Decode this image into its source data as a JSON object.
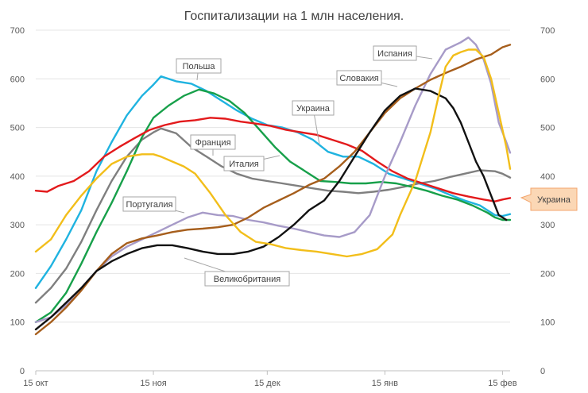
{
  "chart_data": {
    "type": "line",
    "title": "Госпитализации на 1 млн населения.",
    "ylim": [
      0,
      700
    ],
    "y_ticks": [
      0,
      100,
      200,
      300,
      400,
      500,
      600,
      700
    ],
    "x_range_days": [
      0,
      125
    ],
    "x_ticks": [
      {
        "day": 0,
        "label": "15 окт"
      },
      {
        "day": 31,
        "label": "15 ноя"
      },
      {
        "day": 61,
        "label": "15 дек"
      },
      {
        "day": 92,
        "label": "15 янв"
      },
      {
        "day": 123,
        "label": "15 фев"
      }
    ],
    "series": [
      {
        "name": "Польша",
        "color": "#1fb3e0",
        "points": [
          [
            0,
            170
          ],
          [
            4,
            215
          ],
          [
            8,
            270
          ],
          [
            12,
            330
          ],
          [
            16,
            410
          ],
          [
            20,
            470
          ],
          [
            24,
            525
          ],
          [
            28,
            565
          ],
          [
            31,
            588
          ],
          [
            33,
            605
          ],
          [
            37,
            595
          ],
          [
            41,
            590
          ],
          [
            45,
            575
          ],
          [
            49,
            555
          ],
          [
            53,
            535
          ],
          [
            57,
            518
          ],
          [
            61,
            505
          ],
          [
            65,
            500
          ],
          [
            69,
            490
          ],
          [
            73,
            475
          ],
          [
            77,
            450
          ],
          [
            81,
            440
          ],
          [
            85,
            440
          ],
          [
            89,
            425
          ],
          [
            93,
            405
          ],
          [
            97,
            395
          ],
          [
            101,
            385
          ],
          [
            105,
            375
          ],
          [
            109,
            362
          ],
          [
            113,
            350
          ],
          [
            117,
            340
          ],
          [
            121,
            320
          ],
          [
            123,
            318
          ],
          [
            125,
            322
          ]
        ]
      },
      {
        "name": "Италия",
        "color": "#7f7f7f",
        "points": [
          [
            0,
            140
          ],
          [
            4,
            170
          ],
          [
            8,
            210
          ],
          [
            12,
            265
          ],
          [
            16,
            330
          ],
          [
            20,
            390
          ],
          [
            24,
            440
          ],
          [
            28,
            475
          ],
          [
            31,
            490
          ],
          [
            33,
            498
          ],
          [
            37,
            488
          ],
          [
            41,
            460
          ],
          [
            45,
            440
          ],
          [
            49,
            420
          ],
          [
            53,
            405
          ],
          [
            57,
            395
          ],
          [
            61,
            390
          ],
          [
            65,
            385
          ],
          [
            69,
            380
          ],
          [
            73,
            375
          ],
          [
            77,
            370
          ],
          [
            81,
            368
          ],
          [
            85,
            365
          ],
          [
            89,
            368
          ],
          [
            93,
            372
          ],
          [
            97,
            378
          ],
          [
            101,
            385
          ],
          [
            105,
            390
          ],
          [
            109,
            398
          ],
          [
            113,
            405
          ],
          [
            117,
            412
          ],
          [
            121,
            410
          ],
          [
            123,
            405
          ],
          [
            125,
            397
          ]
        ]
      },
      {
        "name": "Франция",
        "color": "#17a04a",
        "points": [
          [
            0,
            100
          ],
          [
            4,
            120
          ],
          [
            8,
            160
          ],
          [
            12,
            220
          ],
          [
            16,
            285
          ],
          [
            20,
            345
          ],
          [
            24,
            410
          ],
          [
            28,
            480
          ],
          [
            31,
            520
          ],
          [
            35,
            545
          ],
          [
            39,
            565
          ],
          [
            43,
            578
          ],
          [
            47,
            570
          ],
          [
            51,
            555
          ],
          [
            55,
            530
          ],
          [
            59,
            495
          ],
          [
            63,
            460
          ],
          [
            67,
            430
          ],
          [
            71,
            410
          ],
          [
            75,
            390
          ],
          [
            79,
            388
          ],
          [
            83,
            385
          ],
          [
            87,
            385
          ],
          [
            91,
            388
          ],
          [
            95,
            385
          ],
          [
            99,
            378
          ],
          [
            103,
            370
          ],
          [
            107,
            360
          ],
          [
            111,
            352
          ],
          [
            115,
            340
          ],
          [
            119,
            325
          ],
          [
            121,
            315
          ],
          [
            123,
            310
          ],
          [
            125,
            310
          ]
        ]
      },
      {
        "name": "Украина",
        "color": "#e31a1c",
        "points": [
          [
            0,
            370
          ],
          [
            3,
            368
          ],
          [
            6,
            380
          ],
          [
            10,
            390
          ],
          [
            14,
            410
          ],
          [
            18,
            440
          ],
          [
            22,
            460
          ],
          [
            26,
            478
          ],
          [
            30,
            495
          ],
          [
            34,
            505
          ],
          [
            38,
            512
          ],
          [
            42,
            515
          ],
          [
            46,
            520
          ],
          [
            50,
            518
          ],
          [
            54,
            512
          ],
          [
            58,
            508
          ],
          [
            62,
            503
          ],
          [
            66,
            495
          ],
          [
            70,
            490
          ],
          [
            74,
            485
          ],
          [
            78,
            475
          ],
          [
            82,
            465
          ],
          [
            86,
            452
          ],
          [
            90,
            430
          ],
          [
            94,
            410
          ],
          [
            98,
            395
          ],
          [
            102,
            385
          ],
          [
            106,
            375
          ],
          [
            110,
            365
          ],
          [
            114,
            358
          ],
          [
            118,
            352
          ],
          [
            121,
            348
          ],
          [
            123,
            352
          ],
          [
            125,
            355
          ]
        ]
      },
      {
        "name": "Португалия",
        "color": "#a79bc8",
        "points": [
          [
            0,
            100
          ],
          [
            4,
            110
          ],
          [
            8,
            135
          ],
          [
            12,
            170
          ],
          [
            16,
            205
          ],
          [
            20,
            235
          ],
          [
            24,
            255
          ],
          [
            28,
            270
          ],
          [
            32,
            285
          ],
          [
            36,
            300
          ],
          [
            40,
            315
          ],
          [
            44,
            325
          ],
          [
            48,
            320
          ],
          [
            52,
            318
          ],
          [
            56,
            310
          ],
          [
            60,
            305
          ],
          [
            64,
            298
          ],
          [
            68,
            292
          ],
          [
            72,
            285
          ],
          [
            76,
            278
          ],
          [
            80,
            275
          ],
          [
            84,
            285
          ],
          [
            88,
            320
          ],
          [
            92,
            400
          ],
          [
            96,
            470
          ],
          [
            100,
            545
          ],
          [
            104,
            610
          ],
          [
            108,
            660
          ],
          [
            112,
            675
          ],
          [
            114,
            685
          ],
          [
            116,
            670
          ],
          [
            118,
            640
          ],
          [
            120,
            590
          ],
          [
            122,
            510
          ],
          [
            124,
            470
          ],
          [
            125,
            448
          ]
        ]
      },
      {
        "name": "Испания",
        "color": "#a65e1c",
        "points": [
          [
            0,
            75
          ],
          [
            4,
            100
          ],
          [
            8,
            130
          ],
          [
            12,
            165
          ],
          [
            16,
            205
          ],
          [
            20,
            240
          ],
          [
            24,
            262
          ],
          [
            28,
            272
          ],
          [
            32,
            278
          ],
          [
            36,
            285
          ],
          [
            40,
            290
          ],
          [
            44,
            292
          ],
          [
            48,
            295
          ],
          [
            52,
            300
          ],
          [
            56,
            315
          ],
          [
            60,
            335
          ],
          [
            64,
            350
          ],
          [
            68,
            365
          ],
          [
            72,
            382
          ],
          [
            76,
            395
          ],
          [
            80,
            420
          ],
          [
            84,
            450
          ],
          [
            88,
            490
          ],
          [
            92,
            530
          ],
          [
            96,
            560
          ],
          [
            100,
            580
          ],
          [
            104,
            598
          ],
          [
            108,
            612
          ],
          [
            112,
            625
          ],
          [
            116,
            640
          ],
          [
            120,
            650
          ],
          [
            123,
            665
          ],
          [
            125,
            670
          ]
        ]
      },
      {
        "name": "Словакия",
        "color": "#111111",
        "points": [
          [
            0,
            85
          ],
          [
            4,
            110
          ],
          [
            8,
            140
          ],
          [
            12,
            170
          ],
          [
            16,
            205
          ],
          [
            20,
            225
          ],
          [
            24,
            240
          ],
          [
            28,
            252
          ],
          [
            32,
            258
          ],
          [
            36,
            258
          ],
          [
            40,
            252
          ],
          [
            44,
            245
          ],
          [
            48,
            240
          ],
          [
            52,
            240
          ],
          [
            56,
            245
          ],
          [
            60,
            255
          ],
          [
            64,
            275
          ],
          [
            68,
            300
          ],
          [
            72,
            330
          ],
          [
            76,
            350
          ],
          [
            80,
            390
          ],
          [
            84,
            440
          ],
          [
            88,
            490
          ],
          [
            92,
            535
          ],
          [
            96,
            565
          ],
          [
            100,
            580
          ],
          [
            104,
            575
          ],
          [
            108,
            560
          ],
          [
            110,
            540
          ],
          [
            112,
            510
          ],
          [
            114,
            470
          ],
          [
            116,
            430
          ],
          [
            118,
            400
          ],
          [
            120,
            360
          ],
          [
            122,
            320
          ],
          [
            124,
            310
          ]
        ]
      },
      {
        "name": "Великобритания",
        "color": "#f2be1a",
        "points": [
          [
            0,
            245
          ],
          [
            4,
            270
          ],
          [
            8,
            320
          ],
          [
            12,
            360
          ],
          [
            16,
            395
          ],
          [
            20,
            425
          ],
          [
            24,
            440
          ],
          [
            28,
            445
          ],
          [
            31,
            445
          ],
          [
            33,
            440
          ],
          [
            36,
            430
          ],
          [
            39,
            420
          ],
          [
            42,
            405
          ],
          [
            46,
            365
          ],
          [
            50,
            320
          ],
          [
            54,
            285
          ],
          [
            58,
            265
          ],
          [
            62,
            260
          ],
          [
            66,
            252
          ],
          [
            70,
            248
          ],
          [
            74,
            245
          ],
          [
            78,
            240
          ],
          [
            82,
            235
          ],
          [
            86,
            240
          ],
          [
            90,
            250
          ],
          [
            94,
            280
          ],
          [
            96,
            320
          ],
          [
            100,
            390
          ],
          [
            104,
            490
          ],
          [
            106,
            560
          ],
          [
            108,
            625
          ],
          [
            110,
            648
          ],
          [
            112,
            655
          ],
          [
            114,
            660
          ],
          [
            116,
            660
          ],
          [
            118,
            645
          ],
          [
            120,
            600
          ],
          [
            122,
            530
          ],
          [
            124,
            460
          ],
          [
            125,
            415
          ]
        ]
      }
    ],
    "callouts": [
      {
        "text": "Польша"
      },
      {
        "text": "Франция"
      },
      {
        "text": "Италия"
      },
      {
        "text": "Украина"
      },
      {
        "text": "Португалия"
      },
      {
        "text": "Великобритания"
      },
      {
        "text": "Словакия"
      },
      {
        "text": "Испания"
      }
    ],
    "end_badge": {
      "text": "Украина",
      "fill": "#fbd7b5",
      "stroke": "#f3a66d"
    }
  }
}
